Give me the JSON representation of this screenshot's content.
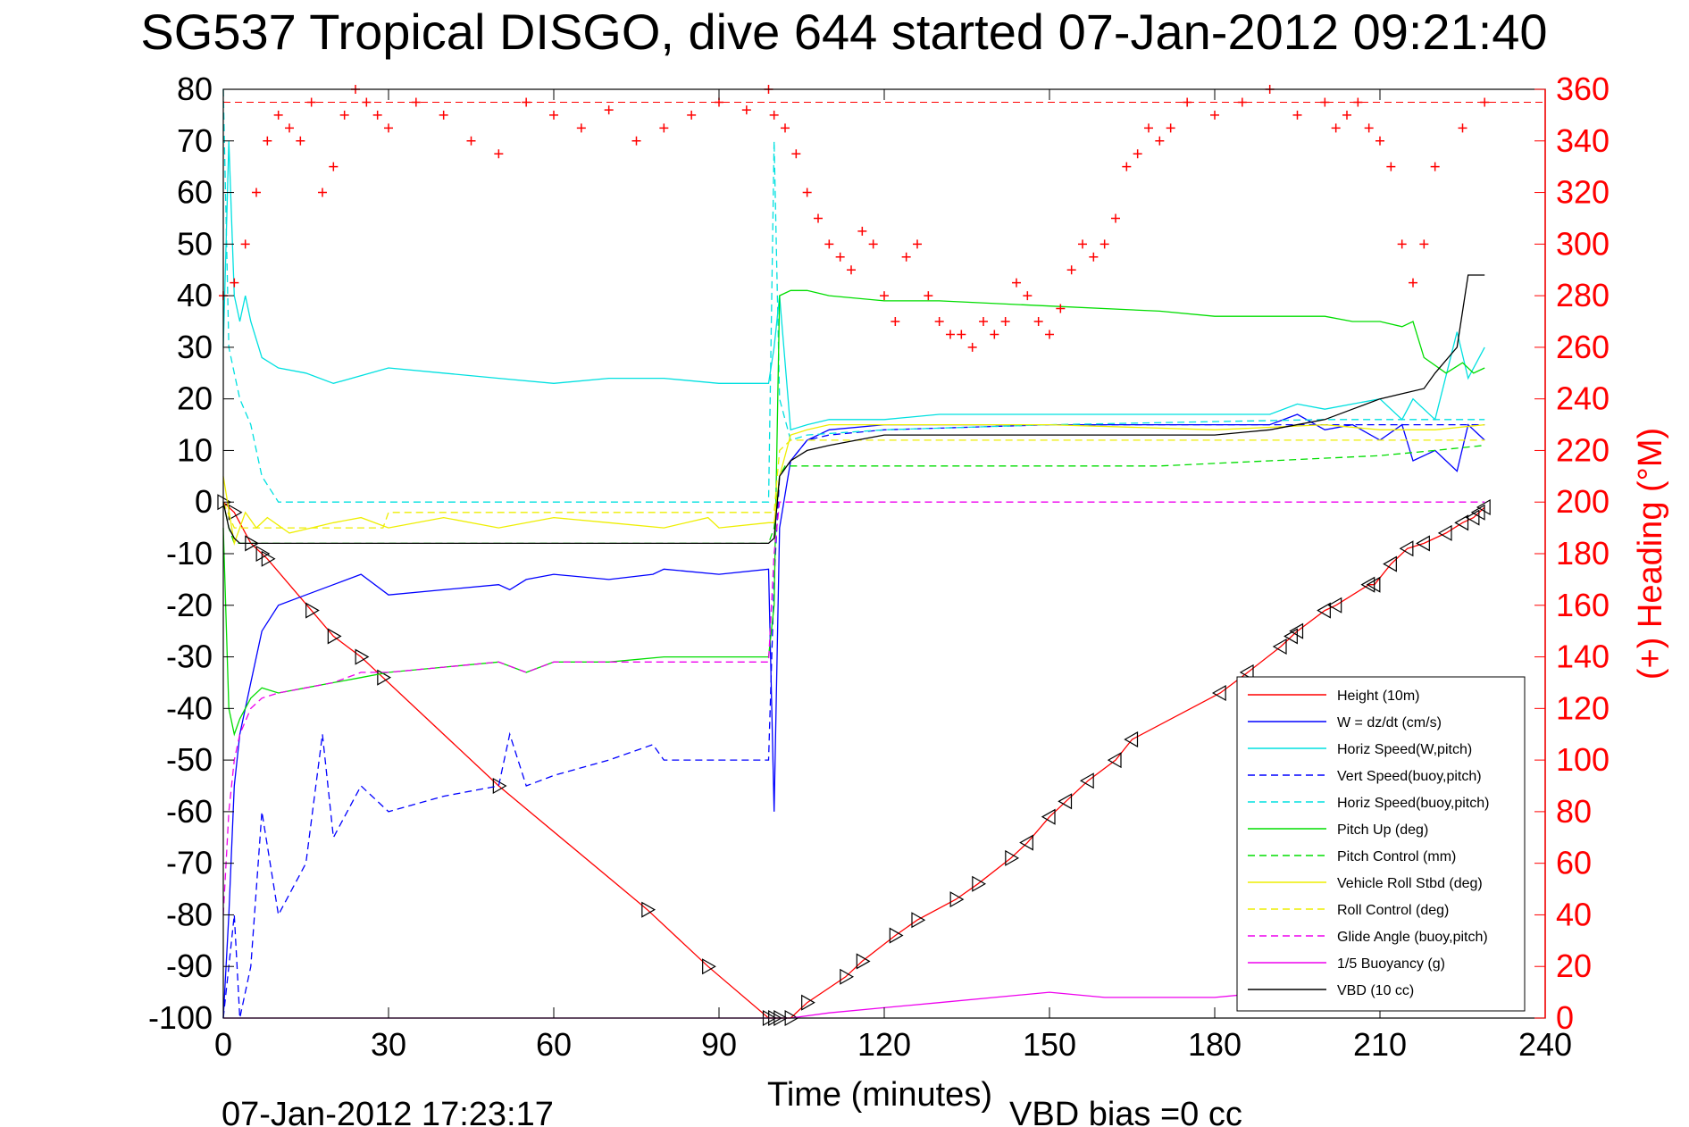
{
  "chart_data": {
    "type": "line",
    "title": "SG537 Tropical DISGO, dive 644 started 07-Jan-2012 09:21:40",
    "xlabel": "Time (minutes)",
    "ylabel_right": "(+) Heading (°M)",
    "footer_left": "07-Jan-2012 17:23:17",
    "footer_right": "VBD bias =0 cc",
    "xlim": [
      0,
      240
    ],
    "ylim": [
      -100,
      80
    ],
    "ylim_right": [
      0,
      360
    ],
    "xticks": [
      "0",
      "30",
      "60",
      "90",
      "120",
      "150",
      "180",
      "210",
      "240"
    ],
    "yticks": [
      "80",
      "70",
      "60",
      "50",
      "40",
      "30",
      "20",
      "10",
      "0",
      "-10",
      "-20",
      "-30",
      "-40",
      "-50",
      "-60",
      "-70",
      "-80",
      "-90",
      "-100"
    ],
    "yticks_right": [
      "360",
      "340",
      "320",
      "300",
      "280",
      "260",
      "240",
      "220",
      "200",
      "180",
      "160",
      "140",
      "120",
      "100",
      "80",
      "60",
      "40",
      "20",
      "0"
    ],
    "legend_position": "bottom-right",
    "series": [
      {
        "name": "Height (10m)",
        "color": "#ff0000",
        "style": "solid",
        "marker": "triangle",
        "x": [
          0,
          2,
          5,
          7,
          8,
          16,
          20,
          25,
          29,
          50,
          77,
          88,
          99,
          100,
          101,
          103,
          106,
          113,
          116,
          122,
          126,
          133,
          137,
          143,
          146,
          150,
          153,
          157,
          162,
          165,
          181,
          186,
          192,
          194,
          195,
          200,
          202,
          208,
          209,
          212,
          215,
          218,
          222,
          225,
          227,
          228,
          229
        ],
        "y": [
          0,
          -2,
          -8,
          -10,
          -11,
          -21,
          -26,
          -30,
          -34,
          -55,
          -79,
          -90,
          -100,
          -100,
          -100,
          -100,
          -97,
          -92,
          -89,
          -84,
          -81,
          -77,
          -74,
          -69,
          -66,
          -61,
          -58,
          -54,
          -50,
          -46,
          -37,
          -33,
          -28,
          -26,
          -25,
          -21,
          -20,
          -16,
          -16,
          -12,
          -9,
          -8,
          -6,
          -4,
          -3,
          -2,
          -1
        ]
      },
      {
        "name": "W = dz/dt (cm/s)",
        "color": "#0000ff",
        "style": "solid",
        "x": [
          0,
          1,
          2,
          3,
          5,
          7,
          10,
          15,
          20,
          25,
          30,
          40,
          50,
          52,
          55,
          60,
          70,
          78,
          80,
          90,
          99,
          100,
          101,
          103,
          106,
          110,
          120,
          130,
          150,
          170,
          180,
          190,
          195,
          200,
          205,
          210,
          214,
          216,
          220,
          224,
          226,
          229
        ],
        "y": [
          -100,
          -80,
          -55,
          -45,
          -35,
          -25,
          -20,
          -18,
          -16,
          -14,
          -18,
          -17,
          -16,
          -17,
          -15,
          -14,
          -15,
          -14,
          -13,
          -14,
          -13,
          -60,
          -5,
          8,
          12,
          14,
          15,
          15,
          15,
          15,
          15,
          15,
          17,
          14,
          15,
          12,
          15,
          8,
          10,
          6,
          15,
          12
        ]
      },
      {
        "name": "Horiz Speed(W,pitch)",
        "color": "#00e0e0",
        "style": "solid",
        "x": [
          0,
          1,
          2,
          3,
          4,
          5,
          7,
          10,
          15,
          20,
          30,
          40,
          50,
          60,
          70,
          80,
          90,
          99,
          100,
          101,
          103,
          106,
          110,
          120,
          130,
          150,
          170,
          180,
          190,
          195,
          200,
          205,
          210,
          214,
          216,
          220,
          224,
          226,
          229
        ],
        "y": [
          30,
          70,
          40,
          35,
          40,
          35,
          28,
          26,
          25,
          23,
          26,
          25,
          24,
          23,
          24,
          24,
          23,
          23,
          30,
          40,
          14,
          15,
          16,
          16,
          17,
          17,
          17,
          17,
          17,
          19,
          18,
          19,
          20,
          16,
          20,
          16,
          33,
          24,
          30
        ]
      },
      {
        "name": "Vert Speed(buoy,pitch)",
        "color": "#0000ff",
        "style": "dashed",
        "x": [
          0,
          1,
          2,
          3,
          5,
          7,
          10,
          15,
          18,
          20,
          25,
          30,
          40,
          50,
          52,
          55,
          60,
          70,
          78,
          80,
          90,
          99,
          100,
          101,
          103,
          106,
          110,
          120,
          150,
          180,
          200,
          220,
          229
        ],
        "y": [
          -100,
          -90,
          -80,
          -100,
          -90,
          -60,
          -80,
          -70,
          -45,
          -65,
          -55,
          -60,
          -57,
          -55,
          -45,
          -55,
          -53,
          -50,
          -47,
          -50,
          -50,
          -50,
          -15,
          5,
          8,
          12,
          13,
          14,
          15,
          15,
          15,
          15,
          15
        ]
      },
      {
        "name": "Horiz Speed(buoy,pitch)",
        "color": "#00e0e0",
        "style": "dashed",
        "x": [
          0,
          1,
          2,
          3,
          5,
          7,
          10,
          20,
          50,
          99,
          100,
          101,
          103,
          106,
          120,
          150,
          200,
          229
        ],
        "y": [
          80,
          30,
          25,
          20,
          15,
          5,
          0,
          0,
          0,
          0,
          70,
          20,
          12,
          13,
          14,
          15,
          16,
          16
        ]
      },
      {
        "name": "Pitch Up (deg)",
        "color": "#00dd00",
        "style": "solid",
        "x": [
          0,
          1,
          2,
          3,
          5,
          7,
          10,
          15,
          20,
          25,
          30,
          40,
          50,
          55,
          60,
          70,
          80,
          90,
          99,
          100,
          101,
          103,
          106,
          110,
          120,
          130,
          150,
          170,
          180,
          190,
          200,
          205,
          210,
          214,
          216,
          218,
          222,
          225,
          227,
          229
        ],
        "y": [
          -5,
          -40,
          -45,
          -42,
          -38,
          -36,
          -37,
          -36,
          -35,
          -34,
          -33,
          -32,
          -31,
          -33,
          -31,
          -31,
          -30,
          -30,
          -30,
          -20,
          40,
          41,
          41,
          40,
          39,
          39,
          38,
          37,
          36,
          36,
          36,
          35,
          35,
          34,
          35,
          28,
          25,
          27,
          25,
          26
        ]
      },
      {
        "name": "Pitch Control (mm)",
        "color": "#00dd00",
        "style": "dashed",
        "x": [
          0,
          1,
          2,
          5,
          10,
          20,
          30,
          50,
          80,
          99,
          100,
          101,
          102,
          106,
          110,
          130,
          150,
          170,
          190,
          210,
          220,
          229
        ],
        "y": [
          0,
          -5,
          -8,
          -8,
          -8,
          -8,
          -8,
          -8,
          -8,
          -8,
          -5,
          5,
          7,
          7,
          7,
          7,
          7,
          7,
          8,
          9,
          10,
          11
        ]
      },
      {
        "name": "Vehicle Roll Stbd (deg)",
        "color": "#eeee00",
        "style": "solid",
        "x": [
          0,
          2,
          4,
          6,
          8,
          12,
          16,
          20,
          25,
          30,
          40,
          50,
          60,
          70,
          80,
          88,
          90,
          99,
          100,
          101,
          103,
          106,
          110,
          120,
          150,
          180,
          200,
          210,
          220,
          229
        ],
        "y": [
          5,
          -8,
          -2,
          -5,
          -3,
          -6,
          -5,
          -4,
          -3,
          -5,
          -3,
          -5,
          -3,
          -4,
          -5,
          -3,
          -5,
          -4,
          -4,
          5,
          13,
          14,
          15,
          15,
          15,
          14,
          15,
          14,
          14,
          15
        ]
      },
      {
        "name": "Roll Control (deg)",
        "color": "#eeee00",
        "style": "dashed",
        "x": [
          0,
          2,
          5,
          10,
          20,
          29,
          30,
          50,
          78,
          99,
          100,
          101,
          103,
          106,
          120,
          150,
          180,
          200,
          229
        ],
        "y": [
          0,
          -5,
          -5,
          -5,
          -5,
          -5,
          -2,
          -2,
          -2,
          -2,
          -2,
          10,
          12,
          12,
          12,
          12,
          12,
          12,
          12
        ]
      },
      {
        "name": "Glide Angle (buoy,pitch)",
        "color": "#ee00ee",
        "style": "dashed",
        "x": [
          0,
          1,
          2,
          3,
          5,
          7,
          10,
          15,
          20,
          25,
          30,
          40,
          50,
          55,
          60,
          70,
          80,
          90,
          99,
          100,
          101,
          103,
          106,
          120,
          150,
          180,
          200,
          229
        ],
        "y": [
          -80,
          -60,
          -50,
          -45,
          -40,
          -38,
          -37,
          -36,
          -35,
          -33,
          -33,
          -32,
          -31,
          -33,
          -31,
          -31,
          -31,
          -31,
          -31,
          -10,
          0,
          0,
          0,
          0,
          0,
          0,
          0,
          0
        ]
      },
      {
        "name": "1/5 Buoyancy (g)",
        "color": "#ee00ee",
        "style": "solid",
        "x": [
          0,
          1,
          3,
          5,
          10,
          50,
          99,
          100,
          103,
          110,
          120,
          130,
          140,
          150,
          160,
          170,
          180,
          190,
          200,
          210,
          220,
          229
        ],
        "y": [
          -100,
          -100,
          -100,
          -100,
          -100,
          -100,
          -100,
          -100,
          -100,
          -99,
          -98,
          -97,
          -96,
          -95,
          -96,
          -96,
          -96,
          -95,
          -95,
          -95,
          -95,
          -95
        ]
      },
      {
        "name": "VBD (10 cc)",
        "color": "#000000",
        "style": "solid",
        "x": [
          0,
          1,
          2,
          3,
          5,
          10,
          30,
          50,
          80,
          99,
          100,
          101,
          103,
          106,
          110,
          115,
          120,
          140,
          160,
          180,
          190,
          200,
          205,
          210,
          214,
          218,
          220,
          224,
          226,
          229
        ],
        "y": [
          0,
          -5,
          -7,
          -8,
          -8,
          -8,
          -8,
          -8,
          -8,
          -8,
          -7,
          5,
          8,
          10,
          11,
          12,
          13,
          13,
          13,
          13,
          14,
          16,
          18,
          20,
          21,
          22,
          25,
          30,
          44,
          44
        ]
      }
    ],
    "heading_series": {
      "name": "(+) Heading",
      "color": "#ff0000",
      "marker": "plus",
      "reference_line": 355,
      "x": [
        0,
        2,
        4,
        6,
        8,
        10,
        12,
        14,
        16,
        18,
        20,
        22,
        24,
        26,
        28,
        30,
        35,
        40,
        45,
        50,
        55,
        60,
        65,
        70,
        75,
        80,
        85,
        90,
        95,
        99,
        100,
        102,
        104,
        106,
        108,
        110,
        112,
        114,
        116,
        118,
        120,
        122,
        124,
        126,
        128,
        130,
        132,
        134,
        136,
        138,
        140,
        142,
        144,
        146,
        148,
        150,
        152,
        154,
        156,
        158,
        160,
        162,
        164,
        166,
        168,
        170,
        172,
        175,
        180,
        185,
        190,
        195,
        200,
        202,
        204,
        206,
        208,
        210,
        212,
        214,
        216,
        218,
        220,
        225,
        229
      ],
      "y": [
        280,
        285,
        300,
        320,
        340,
        350,
        345,
        340,
        355,
        320,
        330,
        350,
        360,
        355,
        350,
        345,
        355,
        350,
        340,
        335,
        355,
        350,
        345,
        352,
        340,
        345,
        350,
        355,
        352,
        360,
        350,
        345,
        335,
        320,
        310,
        300,
        295,
        290,
        305,
        300,
        280,
        270,
        295,
        300,
        280,
        270,
        265,
        265,
        260,
        270,
        265,
        270,
        285,
        280,
        270,
        265,
        275,
        290,
        300,
        295,
        300,
        310,
        330,
        335,
        345,
        340,
        345,
        355,
        350,
        355,
        360,
        350,
        355,
        345,
        350,
        355,
        345,
        340,
        330,
        300,
        285,
        300,
        330,
        345,
        355
      ]
    }
  }
}
